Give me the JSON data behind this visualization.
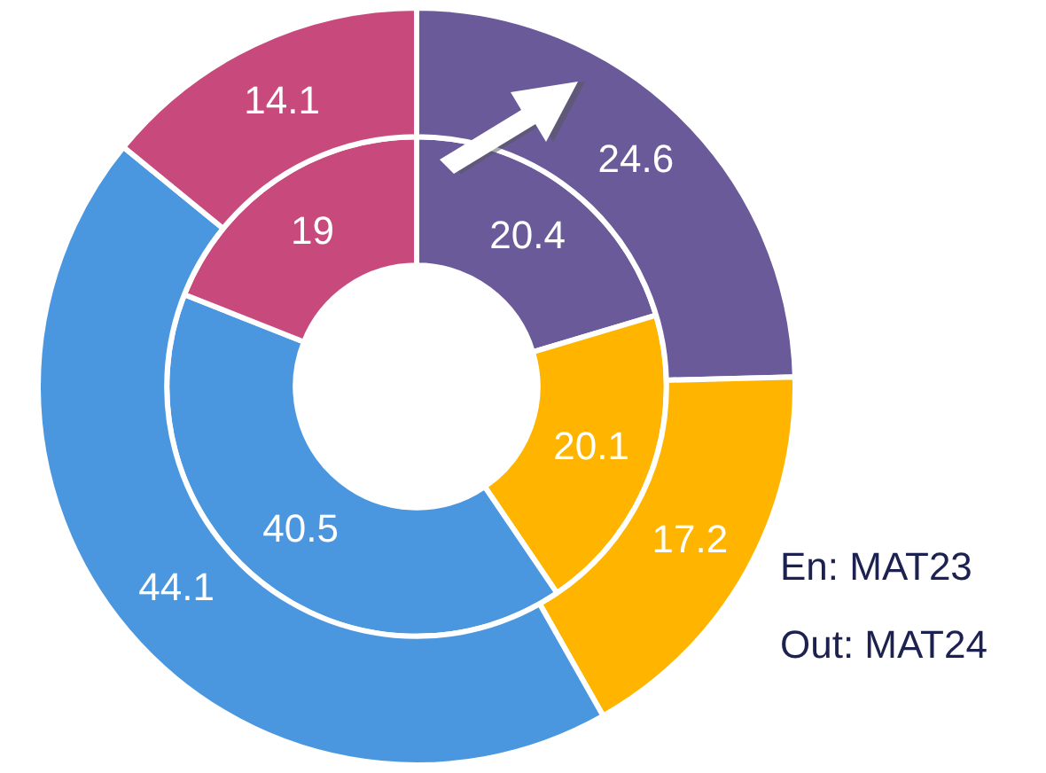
{
  "chart_data": {
    "type": "donut",
    "categories": [
      null,
      null,
      null,
      null
    ],
    "colors": [
      "#6a5a9a",
      "#ffb400",
      "#4a97e0",
      "#c84a7c"
    ],
    "series": [
      {
        "values": [
          24.6,
          17.2,
          44.1,
          14.1
        ]
      },
      {
        "values": [
          20.4,
          20.1,
          40.5,
          19
        ]
      }
    ],
    "data_labels": true,
    "legend": false,
    "annotations": [
      "En: MAT23",
      "Out: MAT24"
    ]
  }
}
